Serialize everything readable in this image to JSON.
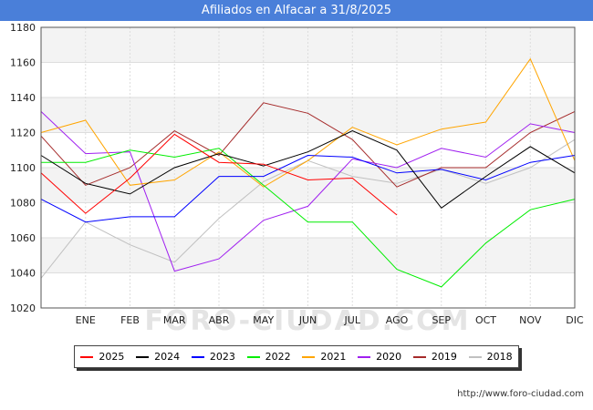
{
  "header": {
    "title": "Afiliados en Alfacar a 31/8/2025"
  },
  "source": "http://www.foro-ciudad.com",
  "watermark": "FORO-CIUDAD.COM",
  "chart_data": {
    "type": "line",
    "title": "Afiliados en Alfacar a 31/8/2025",
    "xlabel": "",
    "ylabel": "",
    "categories": [
      "",
      "ENE",
      "FEB",
      "MAR",
      "ABR",
      "MAY",
      "JUN",
      "JUL",
      "AGO",
      "SEP",
      "OCT",
      "NOV",
      "DIC"
    ],
    "ylim": [
      1020,
      1180
    ],
    "yticks": [
      1020,
      1040,
      1060,
      1080,
      1100,
      1120,
      1140,
      1160,
      1180
    ],
    "grid": true,
    "legend_position": "bottom",
    "series": [
      {
        "name": "2025",
        "color": "#ff0000",
        "values": [
          1097,
          1074,
          1094,
          1119,
          1103,
          1102,
          1093,
          1094,
          1073,
          null,
          null,
          null,
          null
        ]
      },
      {
        "name": "2024",
        "color": "#000000",
        "values": [
          1107,
          1091,
          1085,
          1100,
          1108,
          1101,
          1109,
          1121,
          1110,
          1077,
          1095,
          1112,
          1097
        ]
      },
      {
        "name": "2023",
        "color": "#0000ff",
        "values": [
          1082,
          1069,
          1072,
          1072,
          1095,
          1095,
          1107,
          1106,
          1097,
          1099,
          1093,
          1103,
          1107
        ]
      },
      {
        "name": "2022",
        "color": "#00ee00",
        "values": [
          1103,
          1103,
          1110,
          1106,
          1111,
          1090,
          1069,
          1069,
          1042,
          1032,
          1057,
          1076,
          1082
        ]
      },
      {
        "name": "2021",
        "color": "#ffa500",
        "values": [
          1120,
          1127,
          1090,
          1093,
          1109,
          1089,
          1104,
          1123,
          1113,
          1122,
          1126,
          1162,
          1104
        ]
      },
      {
        "name": "2020",
        "color": "#a020f0",
        "values": [
          1132,
          1108,
          1109,
          1041,
          1048,
          1070,
          1078,
          1105,
          1100,
          1111,
          1106,
          1125,
          1120
        ]
      },
      {
        "name": "2019",
        "color": "#a52a2a",
        "values": [
          1118,
          1090,
          1100,
          1121,
          1107,
          1137,
          1131,
          1116,
          1089,
          1100,
          1100,
          1120,
          1132
        ]
      },
      {
        "name": "2018",
        "color": "#c0c0c0",
        "values": [
          1037,
          1069,
          1056,
          1046,
          1071,
          1092,
          1104,
          1095,
          1091,
          1099,
          1091,
          1100,
          1116
        ]
      }
    ]
  }
}
